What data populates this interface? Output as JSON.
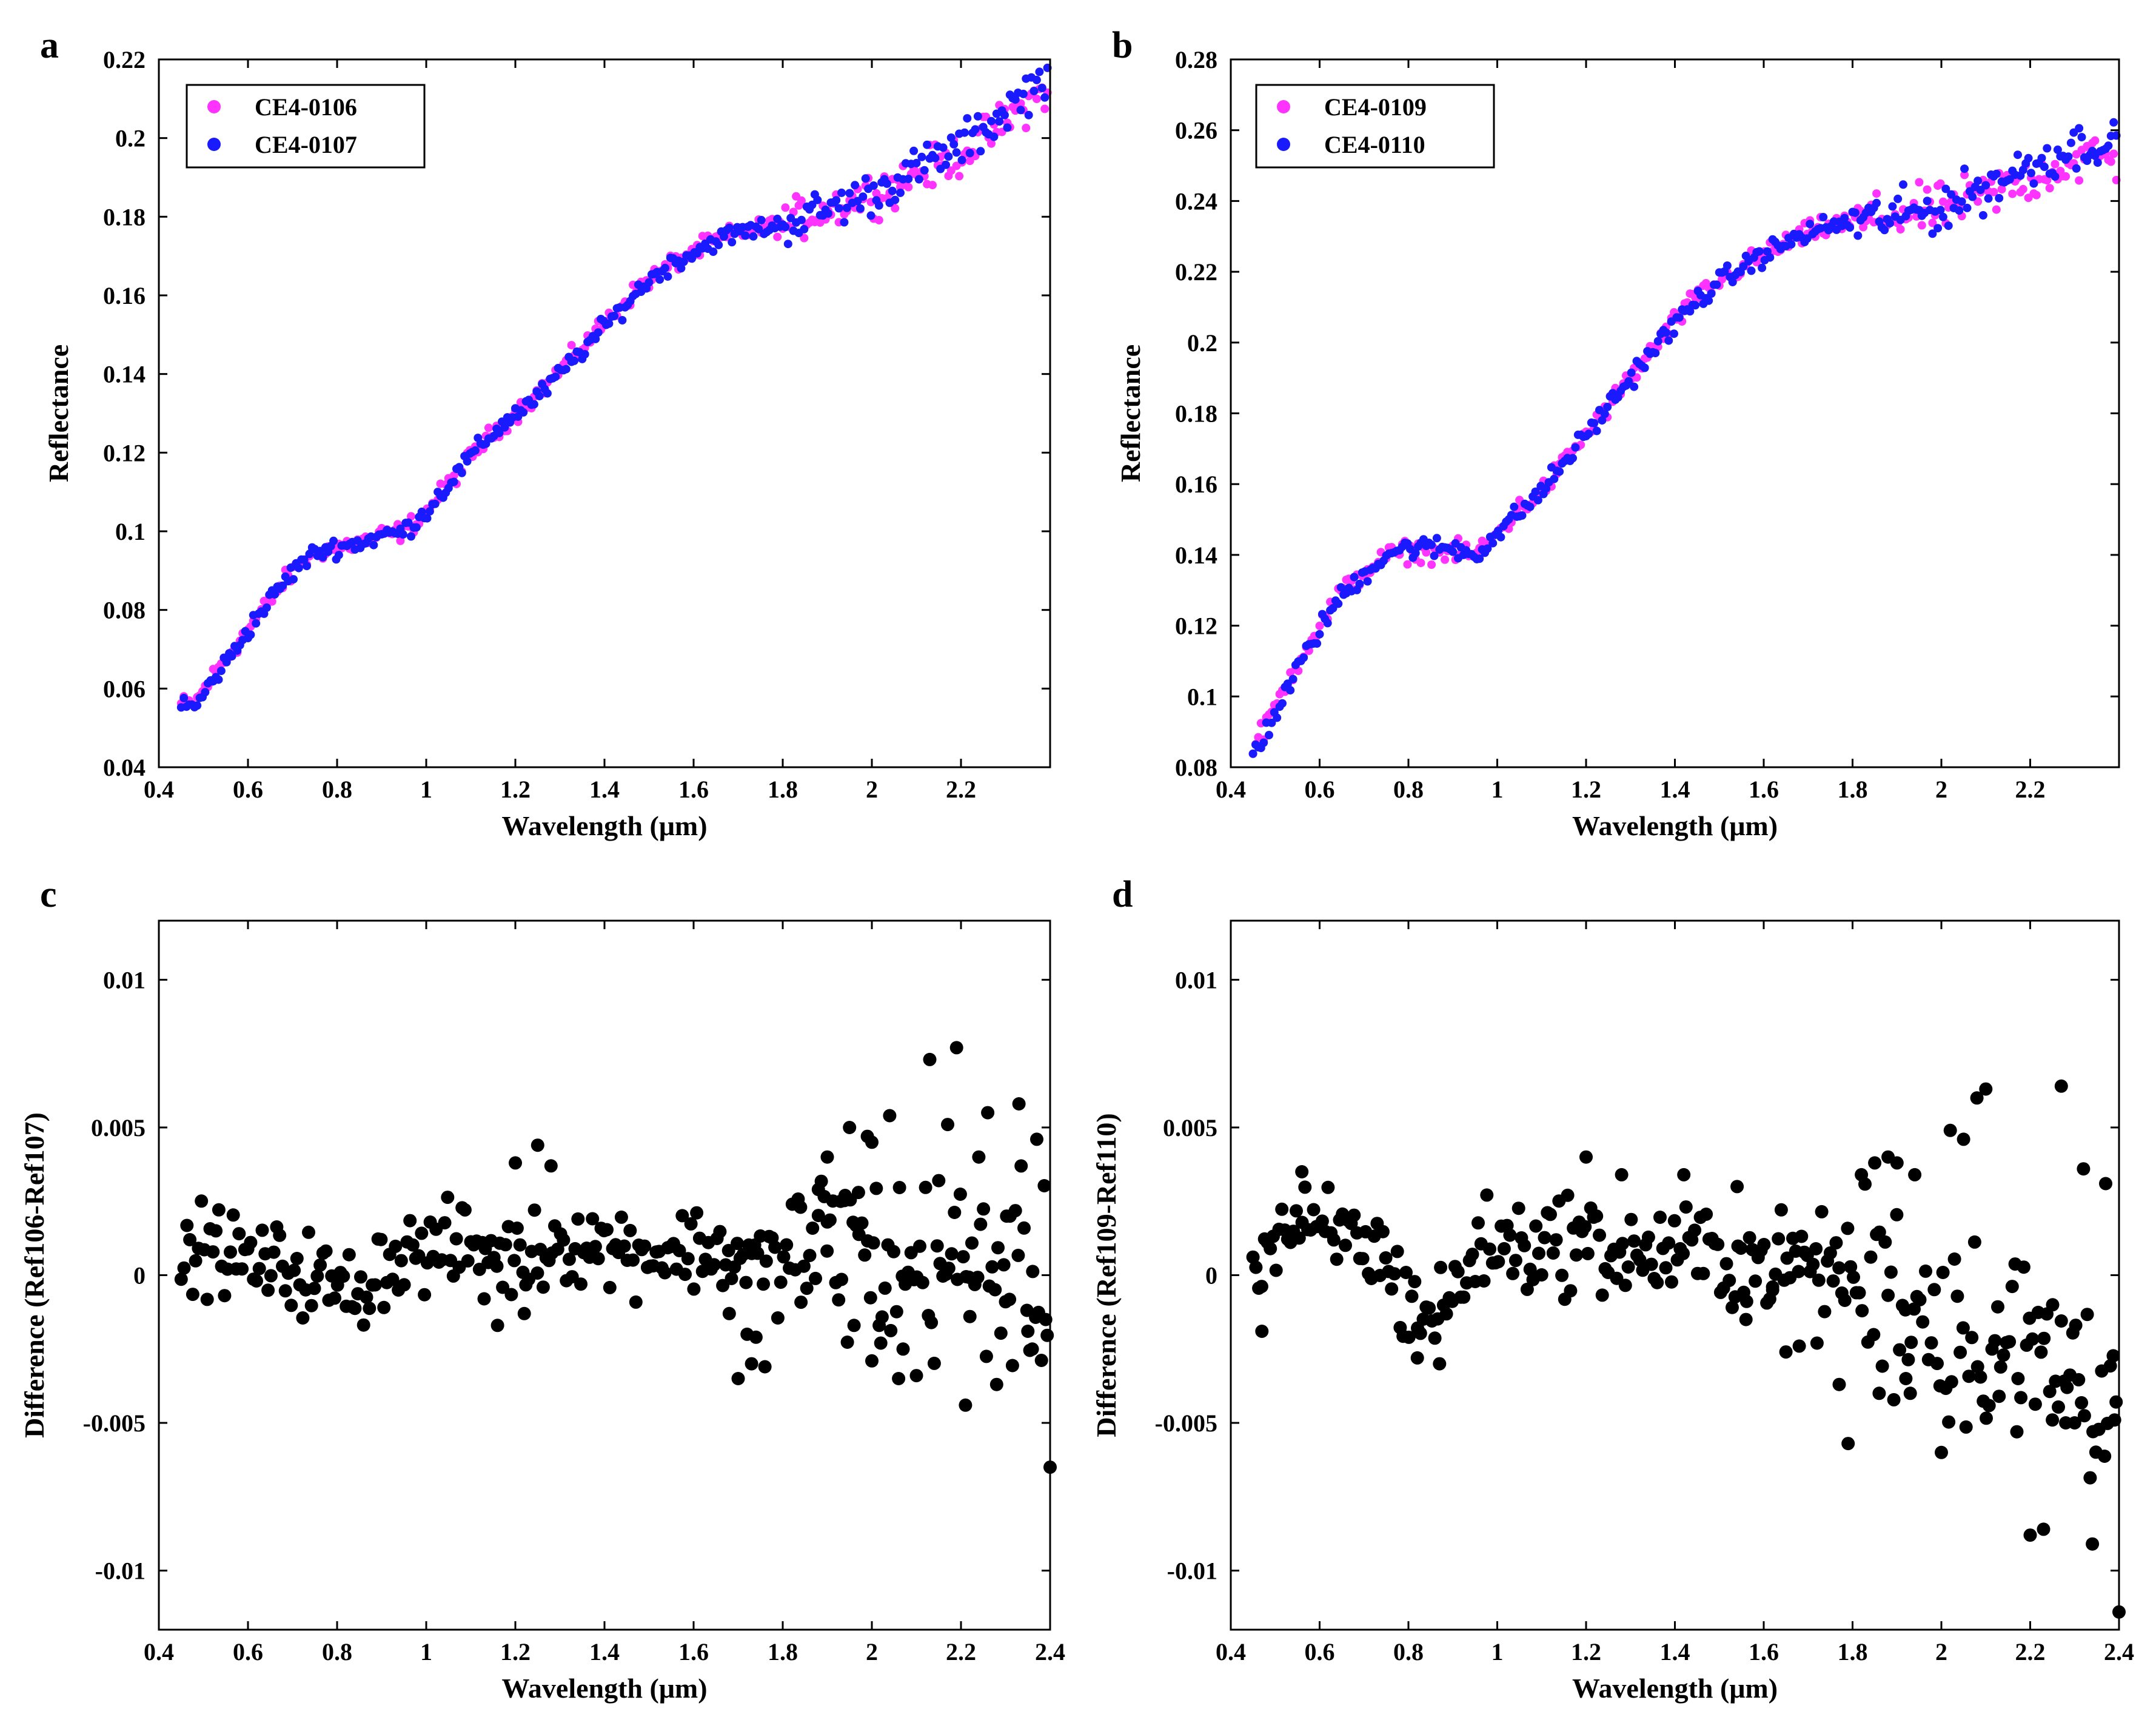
{
  "chart_data": [
    {
      "panel": "a",
      "type": "scatter",
      "xlabel": "Wavelength (μm)",
      "ylabel": "Reflectance",
      "xlim": [
        0.4,
        2.4
      ],
      "ylim": [
        0.04,
        0.22
      ],
      "xticks": [
        0.4,
        0.6,
        0.8,
        1,
        1.2,
        1.4,
        1.6,
        1.8,
        2,
        2.2
      ],
      "xtick_labels": [
        "0.4",
        "0.6",
        "0.8",
        "1",
        "1.2",
        "1.4",
        "1.6",
        "1.8",
        "2",
        "2.2"
      ],
      "yticks": [
        0.04,
        0.06,
        0.08,
        0.1,
        0.12,
        0.14,
        0.16,
        0.18,
        0.2,
        0.22
      ],
      "ytick_labels": [
        "0.04",
        "0.06",
        "0.08",
        "0.1",
        "0.12",
        "0.14",
        "0.16",
        "0.18",
        "0.2",
        "0.22"
      ],
      "legend_position": "top-left",
      "series": [
        {
          "name": "CE4-0106",
          "color": "#ff33ff",
          "noise": 0.0012,
          "x": [
            0.45,
            0.48,
            0.52,
            0.56,
            0.6,
            0.64,
            0.68,
            0.72,
            0.76,
            0.8,
            0.85,
            0.9,
            0.95,
            1.0,
            1.05,
            1.1,
            1.15,
            1.2,
            1.25,
            1.3,
            1.35,
            1.4,
            1.45,
            1.5,
            1.55,
            1.6,
            1.65,
            1.7,
            1.75,
            1.8,
            1.85,
            1.9,
            1.95,
            2.0,
            2.05,
            2.1,
            2.15,
            2.2,
            2.25,
            2.3,
            2.35,
            2.4
          ],
          "values": [
            0.056,
            0.056,
            0.063,
            0.069,
            0.075,
            0.081,
            0.087,
            0.092,
            0.095,
            0.096,
            0.097,
            0.099,
            0.1,
            0.105,
            0.112,
            0.119,
            0.125,
            0.13,
            0.135,
            0.141,
            0.147,
            0.153,
            0.159,
            0.164,
            0.168,
            0.171,
            0.174,
            0.176,
            0.177,
            0.178,
            0.18,
            0.182,
            0.184,
            0.186,
            0.188,
            0.191,
            0.193,
            0.196,
            0.2,
            0.204,
            0.209,
            0.213
          ]
        },
        {
          "name": "CE4-0107",
          "color": "#1a1aff",
          "noise": 0.0012,
          "x": [
            0.45,
            0.48,
            0.52,
            0.56,
            0.6,
            0.64,
            0.68,
            0.72,
            0.76,
            0.8,
            0.85,
            0.9,
            0.95,
            1.0,
            1.05,
            1.1,
            1.15,
            1.2,
            1.25,
            1.3,
            1.35,
            1.4,
            1.45,
            1.5,
            1.55,
            1.6,
            1.65,
            1.7,
            1.75,
            1.8,
            1.85,
            1.9,
            1.95,
            2.0,
            2.05,
            2.1,
            2.15,
            2.2,
            2.25,
            2.3,
            2.35,
            2.4
          ],
          "values": [
            0.056,
            0.055,
            0.062,
            0.068,
            0.075,
            0.081,
            0.087,
            0.092,
            0.095,
            0.096,
            0.097,
            0.099,
            0.1,
            0.105,
            0.112,
            0.119,
            0.125,
            0.13,
            0.134,
            0.14,
            0.146,
            0.152,
            0.158,
            0.164,
            0.168,
            0.171,
            0.174,
            0.176,
            0.177,
            0.178,
            0.18,
            0.182,
            0.184,
            0.186,
            0.189,
            0.192,
            0.195,
            0.198,
            0.202,
            0.207,
            0.212,
            0.217
          ]
        }
      ]
    },
    {
      "panel": "b",
      "type": "scatter",
      "xlabel": "Wavelength (μm)",
      "ylabel": "Reflectance",
      "xlim": [
        0.4,
        2.4
      ],
      "ylim": [
        0.08,
        0.28
      ],
      "xticks": [
        0.4,
        0.6,
        0.8,
        1,
        1.2,
        1.4,
        1.6,
        1.8,
        2,
        2.2
      ],
      "xtick_labels": [
        "0.4",
        "0.6",
        "0.8",
        "1",
        "1.2",
        "1.4",
        "1.6",
        "1.8",
        "2",
        "2.2"
      ],
      "yticks": [
        0.08,
        0.1,
        0.12,
        0.14,
        0.16,
        0.18,
        0.2,
        0.22,
        0.24,
        0.26,
        0.28
      ],
      "ytick_labels": [
        "0.08",
        "0.1",
        "0.12",
        "0.14",
        "0.16",
        "0.18",
        "0.2",
        "0.22",
        "0.24",
        "0.26",
        "0.28"
      ],
      "legend_position": "top-left",
      "series": [
        {
          "name": "CE4-0109",
          "color": "#ff33ff",
          "noise": 0.0015,
          "x": [
            0.45,
            0.48,
            0.52,
            0.56,
            0.6,
            0.64,
            0.68,
            0.72,
            0.76,
            0.8,
            0.85,
            0.9,
            0.95,
            1.0,
            1.05,
            1.1,
            1.15,
            1.2,
            1.25,
            1.3,
            1.35,
            1.4,
            1.45,
            1.5,
            1.55,
            1.6,
            1.65,
            1.7,
            1.75,
            1.8,
            1.85,
            1.9,
            1.95,
            2.0,
            2.05,
            2.1,
            2.15,
            2.2,
            2.25,
            2.3,
            2.35,
            2.4
          ],
          "values": [
            0.085,
            0.092,
            0.102,
            0.112,
            0.12,
            0.128,
            0.133,
            0.137,
            0.14,
            0.141,
            0.141,
            0.141,
            0.14,
            0.146,
            0.153,
            0.158,
            0.166,
            0.174,
            0.182,
            0.19,
            0.198,
            0.206,
            0.213,
            0.217,
            0.221,
            0.225,
            0.228,
            0.231,
            0.233,
            0.234,
            0.235,
            0.236,
            0.237,
            0.238,
            0.24,
            0.242,
            0.244,
            0.246,
            0.249,
            0.251,
            0.253,
            0.25
          ]
        },
        {
          "name": "CE4-0110",
          "color": "#1a1aff",
          "noise": 0.0015,
          "x": [
            0.45,
            0.48,
            0.52,
            0.56,
            0.6,
            0.64,
            0.68,
            0.72,
            0.76,
            0.8,
            0.85,
            0.9,
            0.95,
            1.0,
            1.05,
            1.1,
            1.15,
            1.2,
            1.25,
            1.3,
            1.35,
            1.4,
            1.45,
            1.5,
            1.55,
            1.6,
            1.65,
            1.7,
            1.75,
            1.8,
            1.85,
            1.9,
            1.95,
            2.0,
            2.05,
            2.1,
            2.15,
            2.2,
            2.25,
            2.3,
            2.35,
            2.4
          ],
          "values": [
            0.084,
            0.09,
            0.1,
            0.11,
            0.119,
            0.127,
            0.132,
            0.137,
            0.141,
            0.142,
            0.142,
            0.142,
            0.14,
            0.146,
            0.152,
            0.158,
            0.166,
            0.174,
            0.182,
            0.19,
            0.198,
            0.205,
            0.212,
            0.217,
            0.221,
            0.225,
            0.228,
            0.231,
            0.233,
            0.234,
            0.235,
            0.236,
            0.237,
            0.238,
            0.241,
            0.244,
            0.247,
            0.25,
            0.253,
            0.255,
            0.257,
            0.255
          ]
        }
      ]
    },
    {
      "panel": "c",
      "type": "scatter",
      "xlabel": "Wavelength (μm)",
      "ylabel": "Difference (Ref106-Ref107)",
      "xlim": [
        0.4,
        2.4
      ],
      "ylim": [
        -0.012,
        0.012
      ],
      "xticks": [
        0.4,
        0.6,
        0.8,
        1,
        1.2,
        1.4,
        1.6,
        1.8,
        2,
        2.2,
        2.4
      ],
      "xtick_labels": [
        "0.4",
        "0.6",
        "0.8",
        "1",
        "1.2",
        "1.4",
        "1.6",
        "1.8",
        "2",
        "2.2",
        "2.4"
      ],
      "yticks": [
        -0.01,
        -0.005,
        0,
        0.005,
        0.01
      ],
      "ytick_labels": [
        "-0.01",
        "-0.005",
        "0",
        "0.005",
        "0.01"
      ],
      "series": [
        {
          "name": "Difference",
          "color": "#000000",
          "noise": 0.0007,
          "x": [
            0.45,
            0.5,
            0.55,
            0.6,
            0.65,
            0.7,
            0.75,
            0.8,
            0.85,
            0.9,
            0.95,
            1.0,
            1.05,
            1.1,
            1.15,
            1.2,
            1.25,
            1.3,
            1.35,
            1.4,
            1.45,
            1.5,
            1.55,
            1.6,
            1.65,
            1.7,
            1.75,
            1.8,
            1.85,
            1.9,
            1.95,
            2.0,
            2.05,
            2.1,
            2.15,
            2.2,
            2.25,
            2.3,
            2.35,
            2.4
          ],
          "values": [
            0.0005,
            0.001,
            0.0008,
            0.0004,
            0.0003,
            0.0002,
            0.0,
            -0.0005,
            -0.0006,
            0.0004,
            0.0007,
            0.0008,
            0.0009,
            0.001,
            0.0008,
            0.0005,
            0.0008,
            0.0012,
            0.0011,
            0.001,
            0.0009,
            0.0008,
            0.0008,
            0.0009,
            0.0008,
            0.0006,
            0.0004,
            0.0003,
            0.0006,
            0.0009,
            0.001,
            0.0004,
            0.0002,
            0.0002,
            0.0003,
            0.0002,
            0.0003,
            0.0,
            -0.0002,
            -0.0006
          ]
        }
      ],
      "outliers": {
        "x": [
          1.13,
          1.16,
          1.2,
          1.22,
          1.25,
          1.28,
          1.68,
          1.7,
          1.72,
          1.73,
          1.76,
          1.84,
          1.88,
          1.9,
          1.93,
          1.95,
          1.97,
          1.99,
          2.0,
          2.02,
          2.04,
          2.06,
          2.1,
          2.13,
          2.15,
          2.17,
          2.19,
          2.21,
          2.24,
          2.26,
          2.28,
          2.31,
          2.33,
          2.35,
          2.37,
          2.4,
          1.9,
          1.94,
          2.0,
          2.07,
          2.22,
          2.3,
          2.36,
          2.39,
          1.74,
          1.96
        ],
        "values": [
          -0.0008,
          -0.0017,
          0.0038,
          -0.0013,
          0.0044,
          0.0037,
          -0.0013,
          -0.0035,
          -0.002,
          -0.003,
          -0.0031,
          0.0023,
          0.0029,
          0.004,
          0.0025,
          0.005,
          0.0028,
          0.0047,
          0.0045,
          -0.0023,
          0.0054,
          -0.0035,
          -0.0034,
          0.0073,
          0.0032,
          0.0051,
          0.0077,
          -0.0044,
          0.004,
          0.0055,
          -0.0037,
          0.002,
          0.0058,
          -0.0019,
          0.0046,
          -0.0065,
          0.0018,
          0.0027,
          -0.0029,
          -0.0025,
          -0.0014,
          -0.0009,
          -0.0025,
          -0.0015,
          -0.0021,
          -0.0017
        ]
      }
    },
    {
      "panel": "d",
      "type": "scatter",
      "xlabel": "Wavelength (μm)",
      "ylabel": "Difference (Ref109-Ref110)",
      "xlim": [
        0.4,
        2.4
      ],
      "ylim": [
        -0.012,
        0.012
      ],
      "xticks": [
        0.4,
        0.6,
        0.8,
        1,
        1.2,
        1.4,
        1.6,
        1.8,
        2,
        2.2,
        2.4
      ],
      "xtick_labels": [
        "0.4",
        "0.6",
        "0.8",
        "1",
        "1.2",
        "1.4",
        "1.6",
        "1.8",
        "2",
        "2.2",
        "2.4"
      ],
      "yticks": [
        -0.01,
        -0.005,
        0,
        0.005,
        0.01
      ],
      "ytick_labels": [
        "-0.01",
        "-0.005",
        "0",
        "0.005",
        "0.01"
      ],
      "series": [
        {
          "name": "Difference",
          "color": "#000000",
          "noise": 0.0008,
          "x": [
            0.45,
            0.5,
            0.55,
            0.6,
            0.65,
            0.7,
            0.75,
            0.8,
            0.85,
            0.9,
            0.95,
            1.0,
            1.05,
            1.1,
            1.15,
            1.2,
            1.25,
            1.3,
            1.35,
            1.4,
            1.45,
            1.5,
            1.55,
            1.6,
            1.65,
            1.7,
            1.75,
            1.8,
            1.85,
            1.9,
            1.95,
            2.0,
            2.05,
            2.1,
            2.15,
            2.2,
            2.25,
            2.3,
            2.35,
            2.4
          ],
          "values": [
            0.0005,
            0.0013,
            0.0016,
            0.0012,
            0.0014,
            0.0011,
            0.0005,
            -0.001,
            -0.0014,
            -0.0008,
            0.0008,
            0.0011,
            0.001,
            0.001,
            0.0012,
            0.0012,
            0.0008,
            0.0006,
            0.0007,
            0.0008,
            0.0008,
            0.0006,
            0.0004,
            0.0004,
            0.0004,
            0.0005,
            0.0003,
            0.0001,
            -0.0003,
            -0.0006,
            -0.001,
            -0.0015,
            -0.0018,
            -0.002,
            -0.0023,
            -0.0026,
            -0.0028,
            -0.0031,
            -0.0035,
            -0.004
          ]
        }
      ],
      "outliers": {
        "x": [
          0.47,
          0.56,
          0.82,
          0.87,
          1.2,
          1.28,
          1.42,
          1.54,
          1.65,
          1.68,
          1.72,
          1.77,
          1.79,
          1.82,
          1.85,
          1.88,
          1.9,
          1.92,
          1.94,
          2.0,
          2.02,
          2.05,
          2.08,
          2.1,
          2.13,
          2.17,
          2.2,
          2.23,
          2.25,
          2.27,
          2.3,
          2.32,
          2.34,
          2.37,
          2.4,
          2.01,
          1.86,
          1.93,
          2.28,
          2.39,
          1.56,
          1.62
        ],
        "values": [
          -0.0019,
          0.0035,
          -0.0028,
          -0.003,
          0.004,
          0.0034,
          0.0034,
          0.003,
          -0.0026,
          -0.0024,
          -0.0023,
          -0.0037,
          -0.0057,
          0.0034,
          0.0038,
          0.004,
          0.0038,
          -0.0035,
          0.0034,
          -0.006,
          0.0049,
          0.0046,
          0.006,
          0.0063,
          -0.0041,
          -0.0053,
          -0.0088,
          -0.0086,
          -0.0049,
          0.0064,
          -0.005,
          0.0036,
          -0.0091,
          0.0031,
          -0.0114,
          -0.0038,
          -0.004,
          -0.004,
          -0.005,
          -0.0049,
          -0.0015,
          -0.0005
        ]
      }
    }
  ]
}
